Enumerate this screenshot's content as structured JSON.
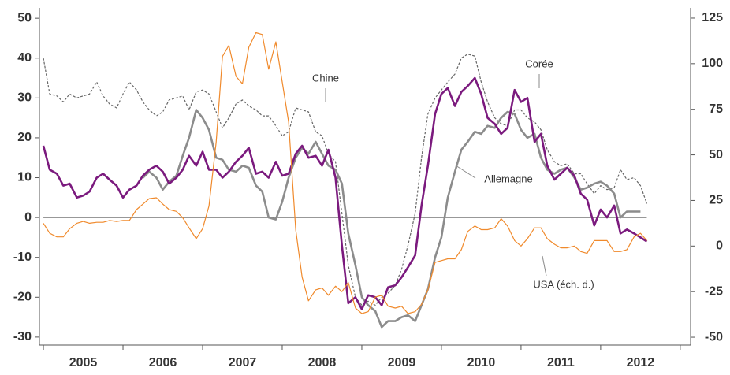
{
  "chart_data": {
    "type": "line",
    "x": [
      2005,
      2005.08,
      2005.17,
      2005.25,
      2005.33,
      2005.42,
      2005.5,
      2005.58,
      2005.67,
      2005.75,
      2005.83,
      2005.92,
      2006,
      2006.08,
      2006.17,
      2006.25,
      2006.33,
      2006.42,
      2006.5,
      2006.58,
      2006.67,
      2006.75,
      2006.83,
      2006.92,
      2007,
      2007.08,
      2007.17,
      2007.25,
      2007.33,
      2007.42,
      2007.5,
      2007.58,
      2007.67,
      2007.75,
      2007.83,
      2007.92,
      2008,
      2008.08,
      2008.17,
      2008.25,
      2008.33,
      2008.42,
      2008.5,
      2008.58,
      2008.67,
      2008.75,
      2008.83,
      2008.92,
      2009,
      2009.08,
      2009.17,
      2009.25,
      2009.33,
      2009.42,
      2009.5,
      2009.58,
      2009.67,
      2009.75,
      2009.83,
      2009.92,
      2010,
      2010.08,
      2010.17,
      2010.25,
      2010.33,
      2010.42,
      2010.5,
      2010.58,
      2010.67,
      2010.75,
      2010.83,
      2010.92,
      2011,
      2011.08,
      2011.17,
      2011.25,
      2011.33,
      2011.42,
      2011.5,
      2011.58,
      2011.67,
      2011.75,
      2011.83,
      2011.92,
      2012,
      2012.08,
      2012.17,
      2012.25,
      2012.33,
      2012.42,
      2012.5,
      2012.58
    ],
    "series": [
      {
        "name": "Chine",
        "color": "#666666",
        "dashed": true,
        "values": [
          40,
          31,
          30.5,
          29,
          31,
          30,
          30.5,
          31,
          34,
          30.5,
          28.5,
          27.5,
          31,
          34,
          32,
          29,
          27,
          25.5,
          26.5,
          29.5,
          30,
          30.5,
          27,
          31.5,
          32,
          31,
          26.5,
          22.5,
          25,
          28.5,
          29.5,
          28,
          27,
          25.5,
          25.5,
          23,
          20.5,
          21.5,
          27.5,
          27,
          26.5,
          21.5,
          20.5,
          16,
          14,
          1,
          -12,
          -20,
          -22,
          -21,
          -22,
          -20,
          -19,
          -17,
          -13,
          -7,
          1,
          15,
          26,
          30,
          32,
          34,
          36,
          40,
          41,
          40.5,
          34,
          29,
          25,
          23.5,
          23,
          27,
          27,
          25,
          24,
          22,
          17,
          14,
          13,
          13.5,
          11,
          11,
          8.5,
          6,
          8,
          7,
          7.5,
          12,
          9.5,
          10,
          8,
          3.5
        ]
      },
      {
        "name": "Allemagne",
        "color": "#8c8c8c",
        "values": [
          null,
          null,
          null,
          null,
          null,
          null,
          null,
          null,
          null,
          null,
          null,
          null,
          null,
          null,
          null,
          10,
          11.5,
          10,
          7,
          9,
          10.5,
          15.5,
          20,
          27,
          25,
          22,
          15,
          14.5,
          12,
          11.5,
          13,
          12.5,
          8,
          6.5,
          0,
          -0.5,
          4,
          10,
          15,
          17.5,
          16,
          19,
          16,
          13,
          12,
          8.5,
          -4,
          -12,
          -20,
          -22,
          -23.5,
          -27.5,
          -26,
          -26,
          -25,
          -24.5,
          -26,
          -22,
          -18,
          -10,
          -5,
          5,
          11.5,
          17,
          19,
          21.5,
          21,
          23,
          22.5,
          25,
          26.5,
          26,
          22,
          20,
          21,
          15,
          12,
          11,
          12,
          12.5,
          10,
          7,
          7.5,
          8.5,
          9,
          8,
          6,
          0,
          1.5,
          1.5,
          1.5,
          null
        ]
      },
      {
        "name": "Corée",
        "color": "#7b1a7e",
        "values": [
          18,
          12,
          11,
          8,
          8.5,
          5,
          5.5,
          6.5,
          10,
          11,
          9.5,
          8,
          5,
          7,
          8,
          10.5,
          12,
          13,
          11.5,
          8.5,
          10,
          12,
          15.5,
          13,
          16.5,
          12,
          12,
          10,
          11.5,
          14,
          15.5,
          17.5,
          11,
          11.5,
          10,
          14,
          10.5,
          11,
          16,
          18,
          15,
          15.5,
          13,
          17,
          10,
          -7,
          -21.5,
          -20,
          -23,
          -19.5,
          -20,
          -22,
          -17.5,
          -17,
          -15,
          -12.5,
          -9.5,
          3,
          13,
          26,
          31,
          32.5,
          28,
          31.5,
          33,
          35,
          31,
          25,
          23.5,
          21,
          22.5,
          32,
          29,
          30,
          19,
          21,
          13,
          9.5,
          11,
          12.5,
          10.5,
          6,
          4.5,
          -2,
          2,
          0,
          3,
          -4,
          -3,
          -4,
          -5,
          -6
        ]
      },
      {
        "name": "USA (éch. d.)",
        "color": "#f08a2c",
        "axis": "y2",
        "values": [
          12.5,
          7,
          5,
          5,
          9.5,
          12.5,
          13.5,
          12.5,
          13,
          13,
          14,
          13.5,
          14,
          14,
          20,
          23,
          26,
          26.5,
          23,
          20,
          19,
          15.5,
          10,
          4,
          9.5,
          22,
          57,
          104,
          110,
          93,
          89,
          109,
          117,
          116,
          97,
          112,
          90,
          68,
          9,
          -17,
          -30,
          -24,
          -23,
          -27,
          -22,
          -25,
          -20,
          -34,
          -37,
          -36,
          -28,
          -27,
          -33,
          -34,
          -33,
          -37,
          -36,
          -32,
          -24,
          -9,
          -8,
          -7,
          -7,
          -2,
          8,
          11,
          9,
          9,
          10,
          15,
          11,
          3,
          0,
          4,
          10,
          10,
          4,
          1,
          -1,
          -1,
          0,
          -3,
          -4,
          3,
          3,
          3,
          -3,
          -3,
          -2,
          5,
          7,
          3
        ]
      }
    ],
    "xlim": [
      2004.95,
      2013.13
    ],
    "xticks": [
      2005,
      2006,
      2007,
      2008,
      2009,
      2010,
      2011,
      2012,
      2013
    ],
    "year_labels": [
      {
        "value": 2005.5,
        "label": "2005"
      },
      {
        "value": 2006.5,
        "label": "2006"
      },
      {
        "value": 2007.5,
        "label": "2007"
      },
      {
        "value": 2008.5,
        "label": "2008"
      },
      {
        "value": 2009.5,
        "label": "2009"
      },
      {
        "value": 2010.5,
        "label": "2010"
      },
      {
        "value": 2011.5,
        "label": "2011"
      },
      {
        "value": 2012.5,
        "label": "2012"
      }
    ],
    "ylim": [
      -32,
      52.6
    ],
    "yticks": [
      -30,
      -20,
      -10,
      0,
      10,
      20,
      30,
      40,
      50
    ],
    "y2lim": [
      -54.3,
      130.6
    ],
    "y2ticks": [
      -50,
      -25,
      0,
      25,
      50,
      75,
      100,
      125
    ],
    "zero_line": 0,
    "annotations": [
      {
        "text": "Chine",
        "series": 0
      },
      {
        "text": "Corée",
        "series": 2
      },
      {
        "text": "Allemagne",
        "series": 1
      },
      {
        "text": "USA (éch. d.)",
        "series": 3
      }
    ]
  }
}
